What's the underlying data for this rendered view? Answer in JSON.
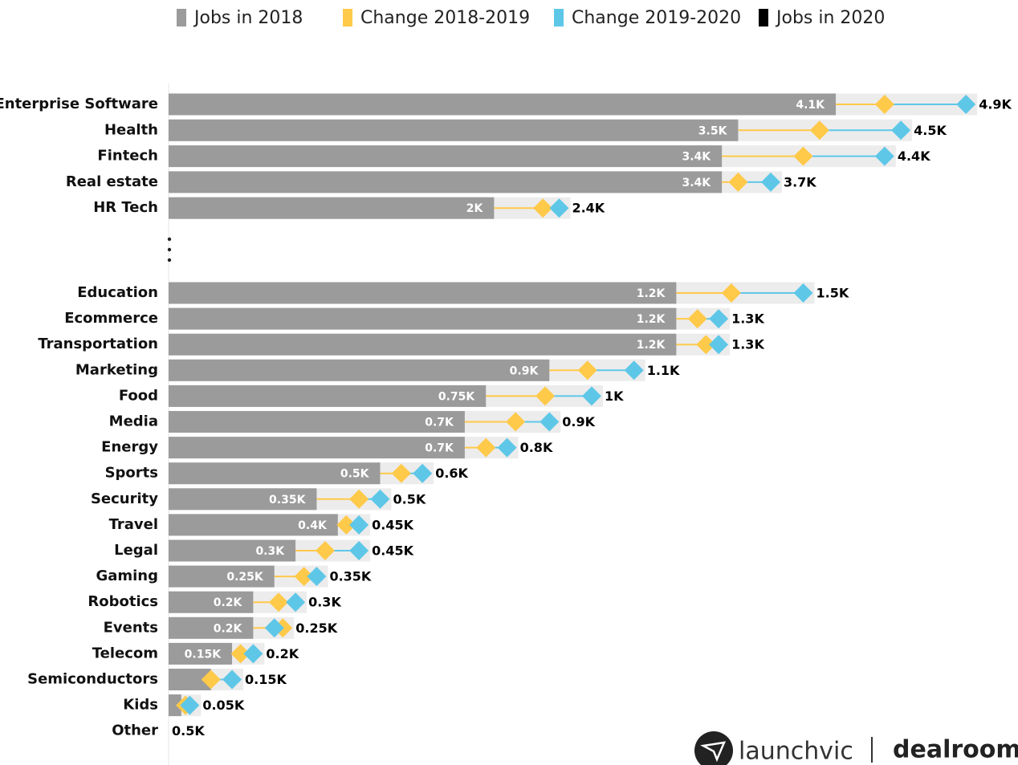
{
  "chart_data": [
    {
      "type": "bar",
      "categories": [
        "Enterprise Software",
        "Health",
        "Fintech",
        "Real estate",
        "HR Tech"
      ],
      "xlim": [
        0,
        5.2
      ],
      "series": [
        {
          "name": "Jobs in 2018",
          "color": "#9b9b9b",
          "values": [
            4.1,
            3.5,
            3.4,
            3.4,
            2
          ],
          "value_labels": [
            "4.1K",
            "3.5K",
            "3.4K",
            "3.4K",
            "2K"
          ]
        },
        {
          "name": "Change 2018-2019",
          "color": "#ffc94a",
          "values": [
            0.3,
            0.5,
            0.5,
            0.1,
            0.3
          ]
        },
        {
          "name": "Change 2019-2020",
          "color": "#5ec7e8",
          "values": [
            0.5,
            0.5,
            0.5,
            0.2,
            0.1
          ]
        },
        {
          "name": "Jobs in 2020",
          "color": "#000000",
          "values": [
            4.9,
            4.5,
            4.4,
            3.7,
            2.4
          ],
          "value_labels": [
            "4.9K",
            "4.5K",
            "4.4K",
            "3.7K",
            "2.4K"
          ]
        }
      ]
    },
    {
      "type": "bar",
      "categories": [
        "Education",
        "Ecommerce",
        "Transportation",
        "Marketing",
        "Food",
        "Media",
        "Energy",
        "Sports",
        "Security",
        "Travel",
        "Legal",
        "Gaming",
        "Robotics",
        "Events",
        "Telecom",
        "Semiconductors",
        "Kids",
        "Other"
      ],
      "xlim": [
        0,
        2
      ],
      "series": [
        {
          "color": "#9b9b9b",
          "values": [
            1.2,
            1.2,
            1.2,
            0.9,
            0.75,
            0.7,
            0.7,
            0.5,
            0.35,
            0.4,
            0.3,
            0.25,
            0.2,
            0.2,
            0.15,
            0.1,
            0.03,
            null
          ],
          "value_labels": [
            "1.2K",
            "1.2K",
            "1.2K",
            "0.9K",
            "0.75K",
            "0.7K",
            "0.7K",
            "0.5K",
            "0.35K",
            "0.4K",
            "0.3K",
            "0.25K",
            "0.2K",
            "0.2K",
            "0.15K",
            null,
            null,
            null
          ]
        },
        {
          "color": "#ffc94a",
          "values": [
            0.13,
            0.05,
            0.07,
            0.09,
            0.14,
            0.12,
            0.05,
            0.05,
            0.1,
            0.02,
            0.07,
            0.07,
            0.06,
            0.07,
            0.02,
            0,
            0.01,
            null
          ]
        },
        {
          "color": "#5ec7e8",
          "values": [
            0.17,
            0.05,
            0.03,
            0.11,
            0.11,
            0.08,
            0.05,
            0.05,
            0.05,
            0.03,
            0.08,
            0.03,
            0.04,
            -0.02,
            0.03,
            0.05,
            0.01,
            null
          ]
        },
        {
          "color": "#000000",
          "values": [
            1.5,
            1.3,
            1.3,
            1.1,
            1,
            0.9,
            0.8,
            0.6,
            0.5,
            0.45,
            0.45,
            0.35,
            0.3,
            0.25,
            0.2,
            0.15,
            0.05,
            0.5
          ],
          "value_labels": [
            "1.5K",
            "1.3K",
            "1.3K",
            "1.1K",
            "1K",
            "0.9K",
            "0.8K",
            "0.6K",
            "0.5K",
            "0.45K",
            "0.45K",
            "0.35K",
            "0.3K",
            "0.25K",
            "0.2K",
            "0.15K",
            "0.05K",
            "0.5K"
          ]
        }
      ]
    }
  ],
  "footer": {
    "brand_left": "launchvic",
    "brand_right": "dealroom.co"
  }
}
